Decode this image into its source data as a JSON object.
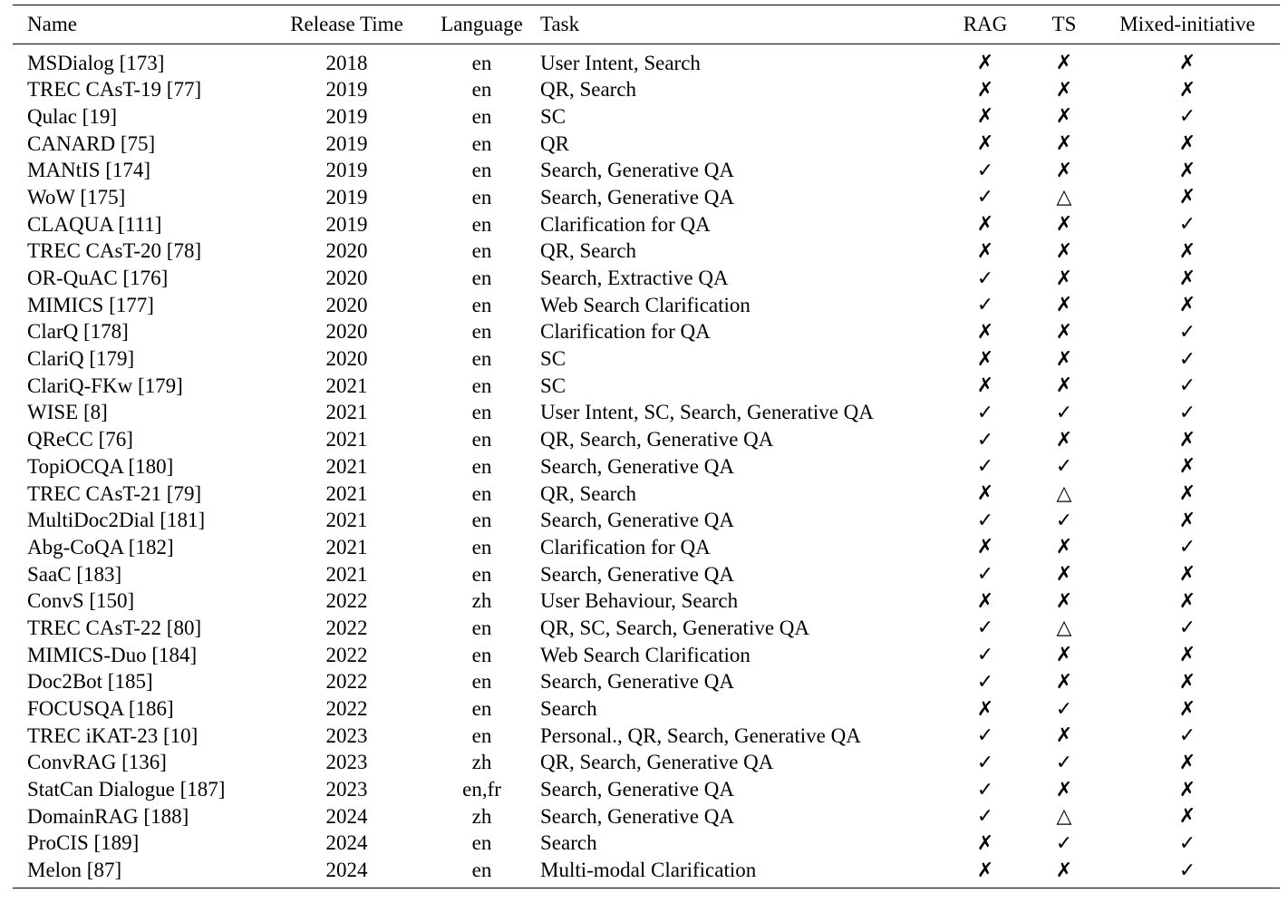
{
  "table": {
    "columns": [
      "Name",
      "Release Time",
      "Language",
      "Task",
      "RAG",
      "TS",
      "Mixed-initiative"
    ],
    "rows": [
      {
        "name": "MSDialog [173]",
        "year": "2018",
        "lang": "en",
        "task": "User Intent, Search",
        "rag": "✗",
        "ts": "✗",
        "mi": "✗"
      },
      {
        "name": "TREC CAsT-19 [77]",
        "year": "2019",
        "lang": "en",
        "task": "QR, Search",
        "rag": "✗",
        "ts": "✗",
        "mi": "✗"
      },
      {
        "name": "Qulac [19]",
        "year": "2019",
        "lang": "en",
        "task": "SC",
        "rag": "✗",
        "ts": "✗",
        "mi": "✓"
      },
      {
        "name": "CANARD [75]",
        "year": "2019",
        "lang": "en",
        "task": "QR",
        "rag": "✗",
        "ts": "✗",
        "mi": "✗"
      },
      {
        "name": "MANtIS [174]",
        "year": "2019",
        "lang": "en",
        "task": "Search, Generative QA",
        "rag": "✓",
        "ts": "✗",
        "mi": "✗"
      },
      {
        "name": "WoW [175]",
        "year": "2019",
        "lang": "en",
        "task": "Search, Generative QA",
        "rag": "✓",
        "ts": "△",
        "mi": "✗"
      },
      {
        "name": "CLAQUA [111]",
        "year": "2019",
        "lang": "en",
        "task": "Clarification for QA",
        "rag": "✗",
        "ts": "✗",
        "mi": "✓"
      },
      {
        "name": "TREC CAsT-20 [78]",
        "year": "2020",
        "lang": "en",
        "task": "QR, Search",
        "rag": "✗",
        "ts": "✗",
        "mi": "✗"
      },
      {
        "name": "OR-QuAC [176]",
        "year": "2020",
        "lang": "en",
        "task": "Search, Extractive QA",
        "rag": "✓",
        "ts": "✗",
        "mi": "✗"
      },
      {
        "name": "MIMICS [177]",
        "year": "2020",
        "lang": "en",
        "task": "Web Search Clarification",
        "rag": "✓",
        "ts": "✗",
        "mi": "✗"
      },
      {
        "name": "ClarQ [178]",
        "year": "2020",
        "lang": "en",
        "task": "Clarification for QA",
        "rag": "✗",
        "ts": "✗",
        "mi": "✓"
      },
      {
        "name": "ClariQ [179]",
        "year": "2020",
        "lang": "en",
        "task": "SC",
        "rag": "✗",
        "ts": "✗",
        "mi": "✓"
      },
      {
        "name": "ClariQ-FKw [179]",
        "year": "2021",
        "lang": "en",
        "task": "SC",
        "rag": "✗",
        "ts": "✗",
        "mi": "✓"
      },
      {
        "name": "WISE [8]",
        "year": "2021",
        "lang": "en",
        "task": "User Intent, SC, Search, Generative QA",
        "rag": "✓",
        "ts": "✓",
        "mi": "✓"
      },
      {
        "name": "QReCC [76]",
        "year": "2021",
        "lang": "en",
        "task": "QR, Search, Generative QA",
        "rag": "✓",
        "ts": "✗",
        "mi": "✗"
      },
      {
        "name": "TopiOCQA [180]",
        "year": "2021",
        "lang": "en",
        "task": "Search, Generative QA",
        "rag": "✓",
        "ts": "✓",
        "mi": "✗"
      },
      {
        "name": "TREC CAsT-21 [79]",
        "year": "2021",
        "lang": "en",
        "task": "QR, Search",
        "rag": "✗",
        "ts": "△",
        "mi": "✗"
      },
      {
        "name": "MultiDoc2Dial [181]",
        "year": "2021",
        "lang": "en",
        "task": "Search, Generative QA",
        "rag": "✓",
        "ts": "✓",
        "mi": "✗"
      },
      {
        "name": "Abg-CoQA [182]",
        "year": "2021",
        "lang": "en",
        "task": "Clarification for QA",
        "rag": "✗",
        "ts": "✗",
        "mi": "✓"
      },
      {
        "name": "SaaC [183]",
        "year": "2021",
        "lang": "en",
        "task": "Search, Generative QA",
        "rag": "✓",
        "ts": "✗",
        "mi": "✗"
      },
      {
        "name": "ConvS [150]",
        "year": "2022",
        "lang": "zh",
        "task": "User Behaviour, Search",
        "rag": "✗",
        "ts": "✗",
        "mi": "✗"
      },
      {
        "name": "TREC CAsT-22 [80]",
        "year": "2022",
        "lang": "en",
        "task": "QR, SC, Search, Generative QA",
        "rag": "✓",
        "ts": "△",
        "mi": "✓"
      },
      {
        "name": "MIMICS-Duo [184]",
        "year": "2022",
        "lang": "en",
        "task": "Web Search Clarification",
        "rag": "✓",
        "ts": "✗",
        "mi": "✗"
      },
      {
        "name": "Doc2Bot [185]",
        "year": "2022",
        "lang": "en",
        "task": "Search, Generative QA",
        "rag": "✓",
        "ts": "✗",
        "mi": "✗"
      },
      {
        "name": "FOCUSQA [186]",
        "year": "2022",
        "lang": "en",
        "task": "Search",
        "rag": "✗",
        "ts": "✓",
        "mi": "✗"
      },
      {
        "name": "TREC iKAT-23 [10]",
        "year": "2023",
        "lang": "en",
        "task": "Personal., QR, Search, Generative QA",
        "rag": "✓",
        "ts": "✗",
        "mi": "✓"
      },
      {
        "name": "ConvRAG [136]",
        "year": "2023",
        "lang": "zh",
        "task": "QR, Search, Generative QA",
        "rag": "✓",
        "ts": "✓",
        "mi": "✗"
      },
      {
        "name": "StatCan Dialogue [187]",
        "year": "2023",
        "lang": "en,fr",
        "task": "Search, Generative QA",
        "rag": "✓",
        "ts": "✗",
        "mi": "✗"
      },
      {
        "name": "DomainRAG [188]",
        "year": "2024",
        "lang": "zh",
        "task": "Search, Generative QA",
        "rag": "✓",
        "ts": "△",
        "mi": "✗"
      },
      {
        "name": "ProCIS [189]",
        "year": "2024",
        "lang": "en",
        "task": "Search",
        "rag": "✗",
        "ts": "✓",
        "mi": "✓"
      },
      {
        "name": "Melon [87]",
        "year": "2024",
        "lang": "en",
        "task": "Multi-modal Clarification",
        "rag": "✗",
        "ts": "✗",
        "mi": "✓"
      }
    ]
  }
}
